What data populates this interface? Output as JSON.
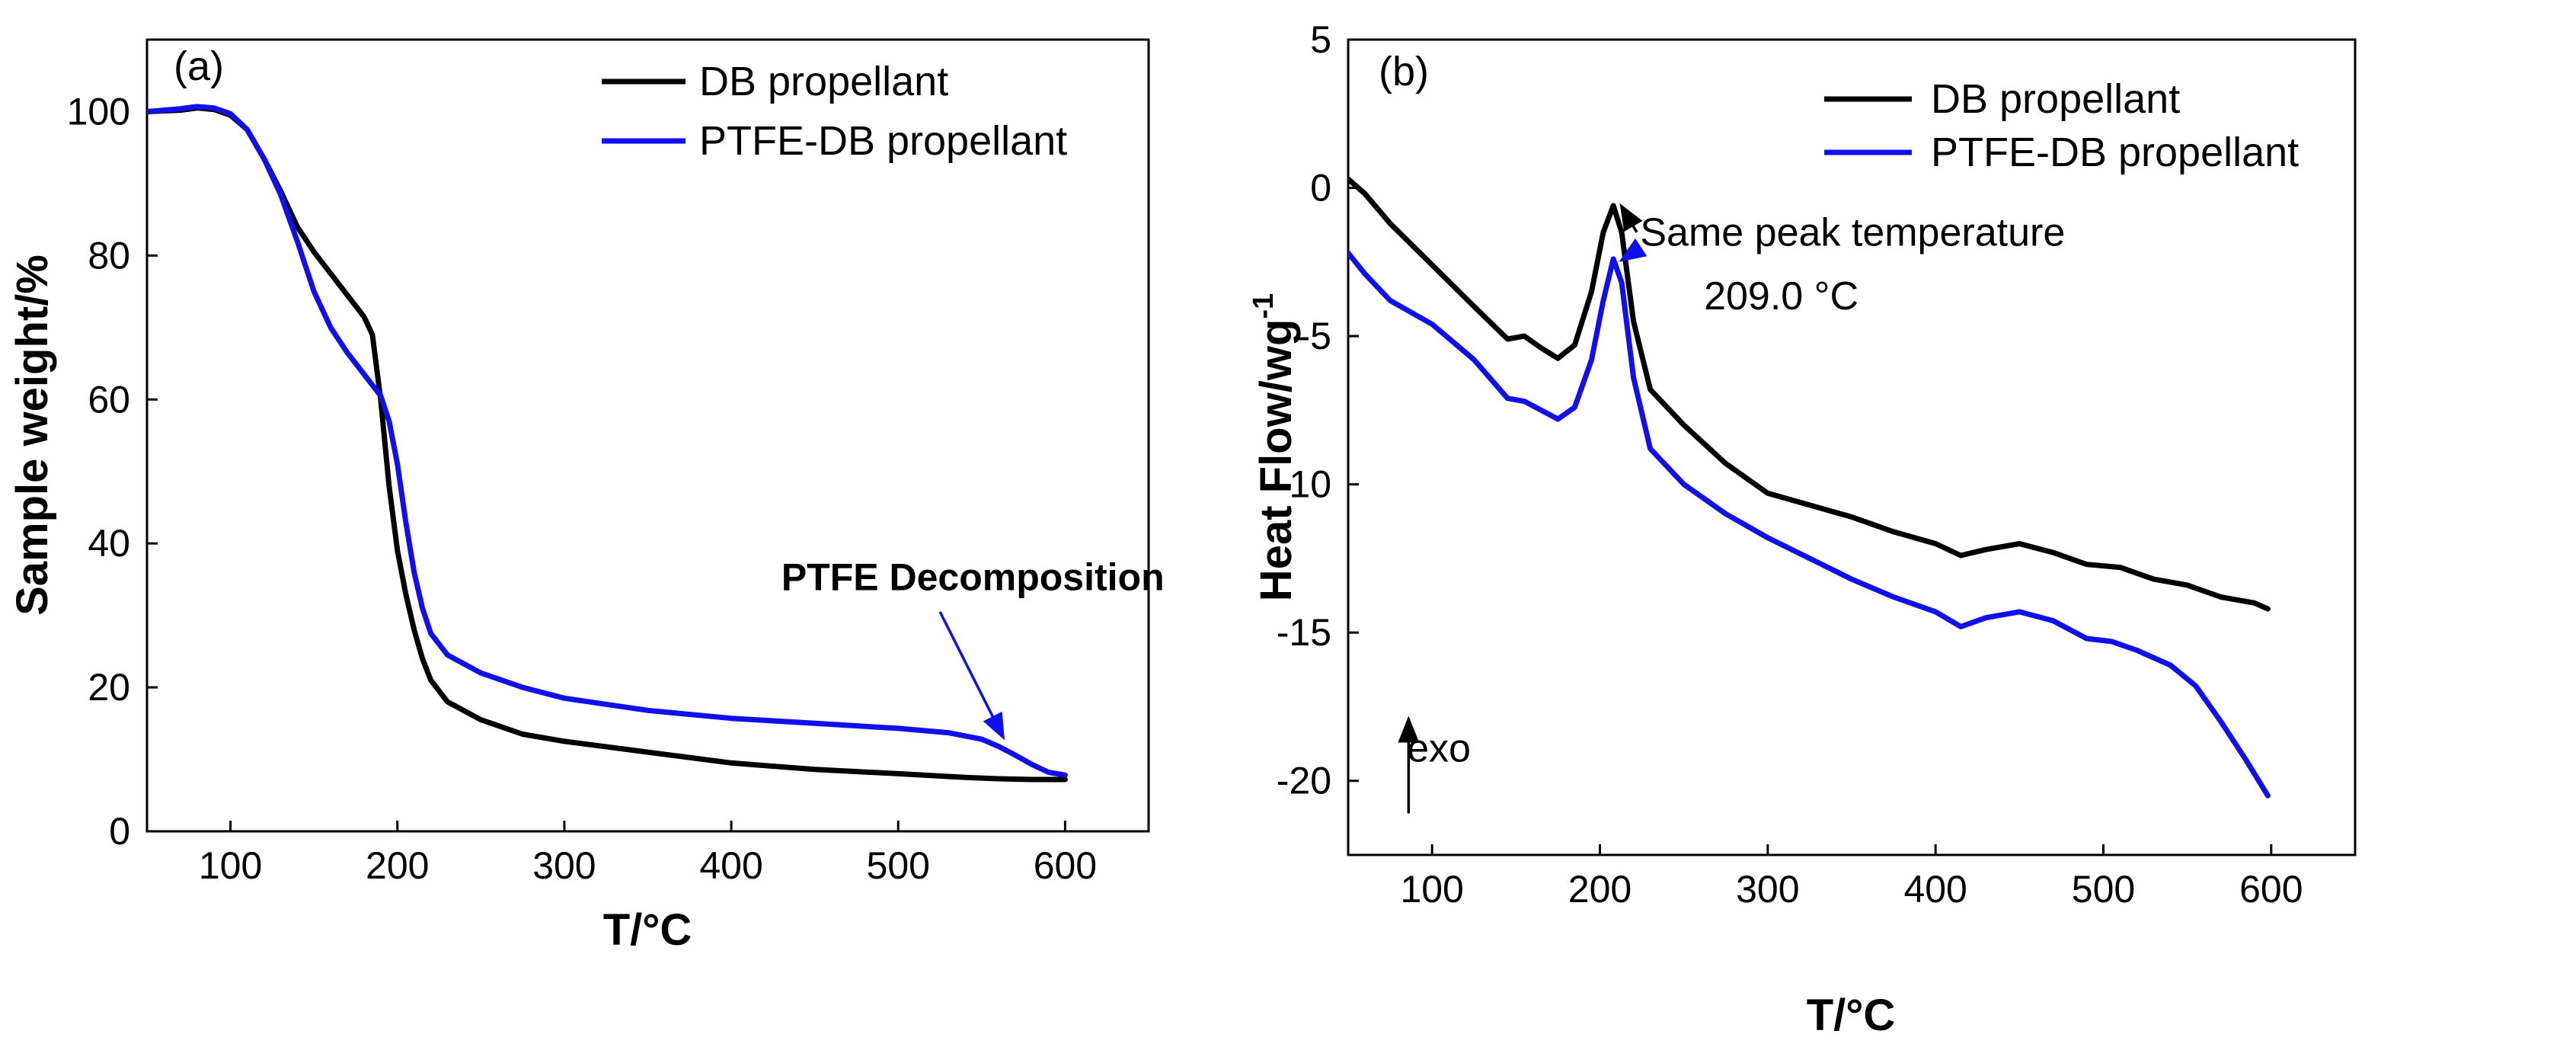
{
  "colors": {
    "db": "#000000",
    "ptfe": "#1010ee",
    "axis": "#000000"
  },
  "chart_data": [
    {
      "type": "line",
      "panel_label": "(a)",
      "title": "",
      "xlabel": "T/°C",
      "ylabel": "Sample weight/%",
      "xlim": [
        50,
        650
      ],
      "ylim": [
        0,
        110
      ],
      "xticks": [
        100,
        200,
        300,
        400,
        500,
        600
      ],
      "yticks": [
        0,
        20,
        40,
        60,
        80,
        100
      ],
      "grid": false,
      "legend": "top-right",
      "series": [
        {
          "name": "DB propellant",
          "color": "#000000",
          "points": [
            [
              50,
              100
            ],
            [
              70,
              100.2
            ],
            [
              80,
              100.5
            ],
            [
              90,
              100.3
            ],
            [
              100,
              99.5
            ],
            [
              110,
              97.5
            ],
            [
              120,
              93.5
            ],
            [
              130,
              89
            ],
            [
              140,
              84
            ],
            [
              150,
              80.5
            ],
            [
              160,
              77.5
            ],
            [
              170,
              74.5
            ],
            [
              180,
              71.5
            ],
            [
              185,
              69
            ],
            [
              190,
              60
            ],
            [
              195,
              48
            ],
            [
              200,
              39
            ],
            [
              205,
              33
            ],
            [
              210,
              28
            ],
            [
              215,
              24
            ],
            [
              220,
              21
            ],
            [
              230,
              18
            ],
            [
              250,
              15.5
            ],
            [
              275,
              13.5
            ],
            [
              300,
              12.5
            ],
            [
              350,
              11
            ],
            [
              400,
              9.5
            ],
            [
              450,
              8.6
            ],
            [
              500,
              8
            ],
            [
              540,
              7.5
            ],
            [
              560,
              7.3
            ],
            [
              580,
              7.2
            ],
            [
              600,
              7.2
            ]
          ]
        },
        {
          "name": "PTFE-DB propellant",
          "color": "#1010ee",
          "points": [
            [
              50,
              100
            ],
            [
              70,
              100.4
            ],
            [
              80,
              100.7
            ],
            [
              90,
              100.5
            ],
            [
              100,
              99.7
            ],
            [
              110,
              97.5
            ],
            [
              120,
              93.5
            ],
            [
              130,
              88.5
            ],
            [
              140,
              82
            ],
            [
              150,
              75
            ],
            [
              160,
              70
            ],
            [
              170,
              66.5
            ],
            [
              180,
              63.5
            ],
            [
              190,
              60.5
            ],
            [
              195,
              57
            ],
            [
              200,
              51
            ],
            [
              205,
              43
            ],
            [
              210,
              36
            ],
            [
              215,
              31
            ],
            [
              220,
              27.5
            ],
            [
              230,
              24.5
            ],
            [
              250,
              22
            ],
            [
              275,
              20
            ],
            [
              300,
              18.5
            ],
            [
              350,
              16.8
            ],
            [
              400,
              15.7
            ],
            [
              450,
              15
            ],
            [
              500,
              14.3
            ],
            [
              530,
              13.7
            ],
            [
              550,
              12.8
            ],
            [
              560,
              11.8
            ],
            [
              570,
              10.6
            ],
            [
              580,
              9.3
            ],
            [
              590,
              8.2
            ],
            [
              600,
              7.8
            ]
          ]
        }
      ],
      "annotations": [
        {
          "text": "PTFE Decomposition",
          "bold": true,
          "text_at": [
            430,
            33.5
          ],
          "arrow_from": [
            525,
            30.5
          ],
          "arrow_to": [
            563,
            13
          ]
        }
      ]
    },
    {
      "type": "line",
      "panel_label": "(b)",
      "title": "",
      "xlabel": "T/°C",
      "ylabel": "Heat Flow/wg",
      "ylabel_sup": "-1",
      "xlim": [
        50,
        650
      ],
      "ylim": [
        -22.5,
        5
      ],
      "xticks": [
        100,
        200,
        300,
        400,
        500,
        600
      ],
      "yticks": [
        5,
        0,
        -5,
        -10,
        -15,
        -20
      ],
      "grid": false,
      "legend": "top-right",
      "series": [
        {
          "name": "DB propellant",
          "color": "#000000",
          "points": [
            [
              50,
              0.3
            ],
            [
              60,
              -0.2
            ],
            [
              75,
              -1.2
            ],
            [
              100,
              -2.6
            ],
            [
              125,
              -4.0
            ],
            [
              145,
              -5.1
            ],
            [
              155,
              -5.0
            ],
            [
              165,
              -5.4
            ],
            [
              175,
              -5.75
            ],
            [
              185,
              -5.3
            ],
            [
              195,
              -3.5
            ],
            [
              202,
              -1.5
            ],
            [
              208,
              -0.6
            ],
            [
              213,
              -1.5
            ],
            [
              220,
              -4.5
            ],
            [
              230,
              -6.8
            ],
            [
              250,
              -8.0
            ],
            [
              275,
              -9.3
            ],
            [
              300,
              -10.3
            ],
            [
              325,
              -10.7
            ],
            [
              350,
              -11.1
            ],
            [
              375,
              -11.6
            ],
            [
              400,
              -12.0
            ],
            [
              415,
              -12.4
            ],
            [
              430,
              -12.2
            ],
            [
              450,
              -12.0
            ],
            [
              470,
              -12.3
            ],
            [
              490,
              -12.7
            ],
            [
              510,
              -12.8
            ],
            [
              530,
              -13.2
            ],
            [
              550,
              -13.4
            ],
            [
              570,
              -13.8
            ],
            [
              590,
              -14.0
            ],
            [
              598,
              -14.2
            ]
          ]
        },
        {
          "name": "PTFE-DB propellant",
          "color": "#1010ee",
          "points": [
            [
              50,
              -2.2
            ],
            [
              60,
              -2.9
            ],
            [
              75,
              -3.8
            ],
            [
              100,
              -4.6
            ],
            [
              125,
              -5.8
            ],
            [
              145,
              -7.1
            ],
            [
              155,
              -7.2
            ],
            [
              165,
              -7.5
            ],
            [
              175,
              -7.8
            ],
            [
              185,
              -7.4
            ],
            [
              195,
              -5.8
            ],
            [
              202,
              -3.8
            ],
            [
              208,
              -2.4
            ],
            [
              213,
              -3.2
            ],
            [
              220,
              -6.4
            ],
            [
              230,
              -8.8
            ],
            [
              250,
              -10.0
            ],
            [
              275,
              -11.0
            ],
            [
              300,
              -11.8
            ],
            [
              325,
              -12.5
            ],
            [
              350,
              -13.2
            ],
            [
              375,
              -13.8
            ],
            [
              400,
              -14.3
            ],
            [
              415,
              -14.8
            ],
            [
              430,
              -14.5
            ],
            [
              450,
              -14.3
            ],
            [
              470,
              -14.6
            ],
            [
              490,
              -15.2
            ],
            [
              505,
              -15.3
            ],
            [
              520,
              -15.6
            ],
            [
              540,
              -16.1
            ],
            [
              555,
              -16.8
            ],
            [
              570,
              -18.0
            ],
            [
              585,
              -19.3
            ],
            [
              598,
              -20.5
            ]
          ]
        }
      ],
      "annotations": [
        {
          "text": "Same peak temperature",
          "text_at": [
            224,
            -1.95
          ]
        },
        {
          "text": "209.0 °C",
          "text_at": [
            262,
            -4.1
          ]
        },
        {
          "text": "exo",
          "text_at": [
            85,
            -19.35
          ]
        }
      ]
    }
  ]
}
